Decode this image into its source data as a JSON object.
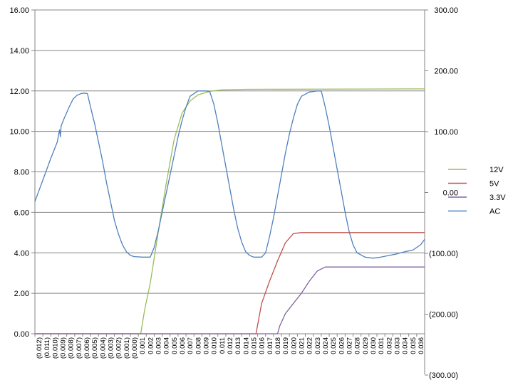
{
  "chart_data": {
    "type": "line",
    "title": "",
    "xlabel": "",
    "ylabel": "",
    "y2label": "",
    "grid": true,
    "legend_position": "right",
    "x_categories": [
      "(0.012)",
      "(0.011)",
      "(0.010)",
      "(0.009)",
      "(0.008)",
      "(0.007)",
      "(0.006)",
      "(0.005)",
      "(0.004)",
      "(0.003)",
      "(0.002)",
      "(0.001)",
      "(0.000)",
      "0.001",
      "0.002",
      "0.003",
      "0.004",
      "0.005",
      "0.006",
      "0.007",
      "0.008",
      "0.009",
      "0.010",
      "0.011",
      "0.012",
      "0.013",
      "0.014",
      "0.015",
      "0.016",
      "0.017",
      "0.018",
      "0.019",
      "0.020",
      "0.021",
      "0.022",
      "0.023",
      "0.024",
      "0.025",
      "0.026",
      "0.027",
      "0.028",
      "0.029",
      "0.030",
      "0.031",
      "0.032",
      "0.033",
      "0.034",
      "0.035",
      "0.036"
    ],
    "x_range": [
      -0.0125,
      0.0365
    ],
    "y_left": {
      "range": [
        0,
        16
      ],
      "ticks": [
        "0.00",
        "2.00",
        "4.00",
        "6.00",
        "8.00",
        "10.00",
        "12.00",
        "14.00",
        "16.00"
      ]
    },
    "y_right": {
      "range": [
        -300,
        300
      ],
      "ticks": [
        "(300.00)",
        "(200.00)",
        "(100.00)",
        "0.00",
        "100.00",
        "200.00",
        "300.00"
      ]
    },
    "series": [
      {
        "name": "12V",
        "color": "#9bbb59",
        "axis": "left",
        "points": [
          [
            -0.0125,
            0
          ],
          [
            0.0,
            0
          ],
          [
            0.0008,
            0
          ],
          [
            0.0013,
            1.2
          ],
          [
            0.002,
            2.5
          ],
          [
            0.003,
            5.0
          ],
          [
            0.004,
            7.4
          ],
          [
            0.005,
            9.6
          ],
          [
            0.006,
            10.9
          ],
          [
            0.007,
            11.5
          ],
          [
            0.008,
            11.8
          ],
          [
            0.0095,
            11.98
          ],
          [
            0.011,
            12.05
          ],
          [
            0.014,
            12.08
          ],
          [
            0.0365,
            12.1
          ]
        ]
      },
      {
        "name": "5V",
        "color": "#c0504d",
        "axis": "left",
        "points": [
          [
            -0.0125,
            0
          ],
          [
            0.0,
            0
          ],
          [
            0.015,
            0
          ],
          [
            0.0153,
            0
          ],
          [
            0.016,
            1.5
          ],
          [
            0.017,
            2.6
          ],
          [
            0.018,
            3.6
          ],
          [
            0.019,
            4.5
          ],
          [
            0.02,
            4.95
          ],
          [
            0.021,
            5.0
          ],
          [
            0.0365,
            5.0
          ]
        ]
      },
      {
        "name": "3.3V",
        "color": "#8064a2",
        "axis": "left",
        "points": [
          [
            -0.0125,
            0
          ],
          [
            0.018,
            0
          ],
          [
            0.0183,
            0.4
          ],
          [
            0.019,
            1.0
          ],
          [
            0.02,
            1.5
          ],
          [
            0.021,
            2.0
          ],
          [
            0.022,
            2.6
          ],
          [
            0.023,
            3.1
          ],
          [
            0.024,
            3.3
          ],
          [
            0.0365,
            3.3
          ]
        ]
      },
      {
        "name": "AC",
        "color": "#4f81bd",
        "axis": "right",
        "points": [
          [
            -0.0125,
            -55
          ],
          [
            -0.0115,
            -15
          ],
          [
            -0.0105,
            25
          ],
          [
            -0.0097,
            55
          ],
          [
            -0.0094,
            78
          ],
          [
            -0.0093,
            65
          ],
          [
            -0.0092,
            85
          ],
          [
            -0.0088,
            100
          ],
          [
            -0.0082,
            120
          ],
          [
            -0.0077,
            135
          ],
          [
            -0.0072,
            142
          ],
          [
            -0.0067,
            145
          ],
          [
            -0.0063,
            146
          ],
          [
            -0.0059,
            145
          ],
          [
            -0.0055,
            120
          ],
          [
            -0.005,
            90
          ],
          [
            -0.0045,
            55
          ],
          [
            -0.004,
            20
          ],
          [
            -0.0035,
            -20
          ],
          [
            -0.003,
            -55
          ],
          [
            -0.0025,
            -90
          ],
          [
            -0.002,
            -115
          ],
          [
            -0.0015,
            -135
          ],
          [
            -0.001,
            -148
          ],
          [
            -0.0005,
            -155
          ],
          [
            0.0,
            -157
          ],
          [
            0.001,
            -158
          ],
          [
            0.002,
            -158
          ],
          [
            0.0025,
            -140
          ],
          [
            0.003,
            -110
          ],
          [
            0.0035,
            -75
          ],
          [
            0.004,
            -40
          ],
          [
            0.0045,
            -5
          ],
          [
            0.005,
            30
          ],
          [
            0.0055,
            65
          ],
          [
            0.006,
            95
          ],
          [
            0.0065,
            120
          ],
          [
            0.007,
            140
          ],
          [
            0.008,
            150
          ],
          [
            0.009,
            150
          ],
          [
            0.0095,
            148
          ],
          [
            0.01,
            125
          ],
          [
            0.0105,
            90
          ],
          [
            0.011,
            50
          ],
          [
            0.0115,
            10
          ],
          [
            0.012,
            -30
          ],
          [
            0.0125,
            -70
          ],
          [
            0.013,
            -105
          ],
          [
            0.0135,
            -130
          ],
          [
            0.014,
            -148
          ],
          [
            0.0145,
            -155
          ],
          [
            0.015,
            -158
          ],
          [
            0.016,
            -158
          ],
          [
            0.0165,
            -150
          ],
          [
            0.017,
            -120
          ],
          [
            0.0175,
            -85
          ],
          [
            0.018,
            -45
          ],
          [
            0.0185,
            -5
          ],
          [
            0.019,
            35
          ],
          [
            0.0195,
            70
          ],
          [
            0.02,
            100
          ],
          [
            0.0205,
            125
          ],
          [
            0.021,
            140
          ],
          [
            0.022,
            148
          ],
          [
            0.023,
            150
          ],
          [
            0.0235,
            150
          ],
          [
            0.024,
            120
          ],
          [
            0.0245,
            85
          ],
          [
            0.025,
            45
          ],
          [
            0.0255,
            5
          ],
          [
            0.026,
            -35
          ],
          [
            0.0265,
            -75
          ],
          [
            0.027,
            -110
          ],
          [
            0.0275,
            -135
          ],
          [
            0.028,
            -150
          ],
          [
            0.029,
            -158
          ],
          [
            0.03,
            -160
          ],
          [
            0.031,
            -158
          ],
          [
            0.032,
            -155
          ],
          [
            0.033,
            -152
          ],
          [
            0.034,
            -148
          ],
          [
            0.035,
            -145
          ],
          [
            0.036,
            -135
          ],
          [
            0.0365,
            -125
          ]
        ]
      }
    ],
    "legend": [
      "12V",
      "5V",
      "3.3V",
      "AC"
    ]
  }
}
